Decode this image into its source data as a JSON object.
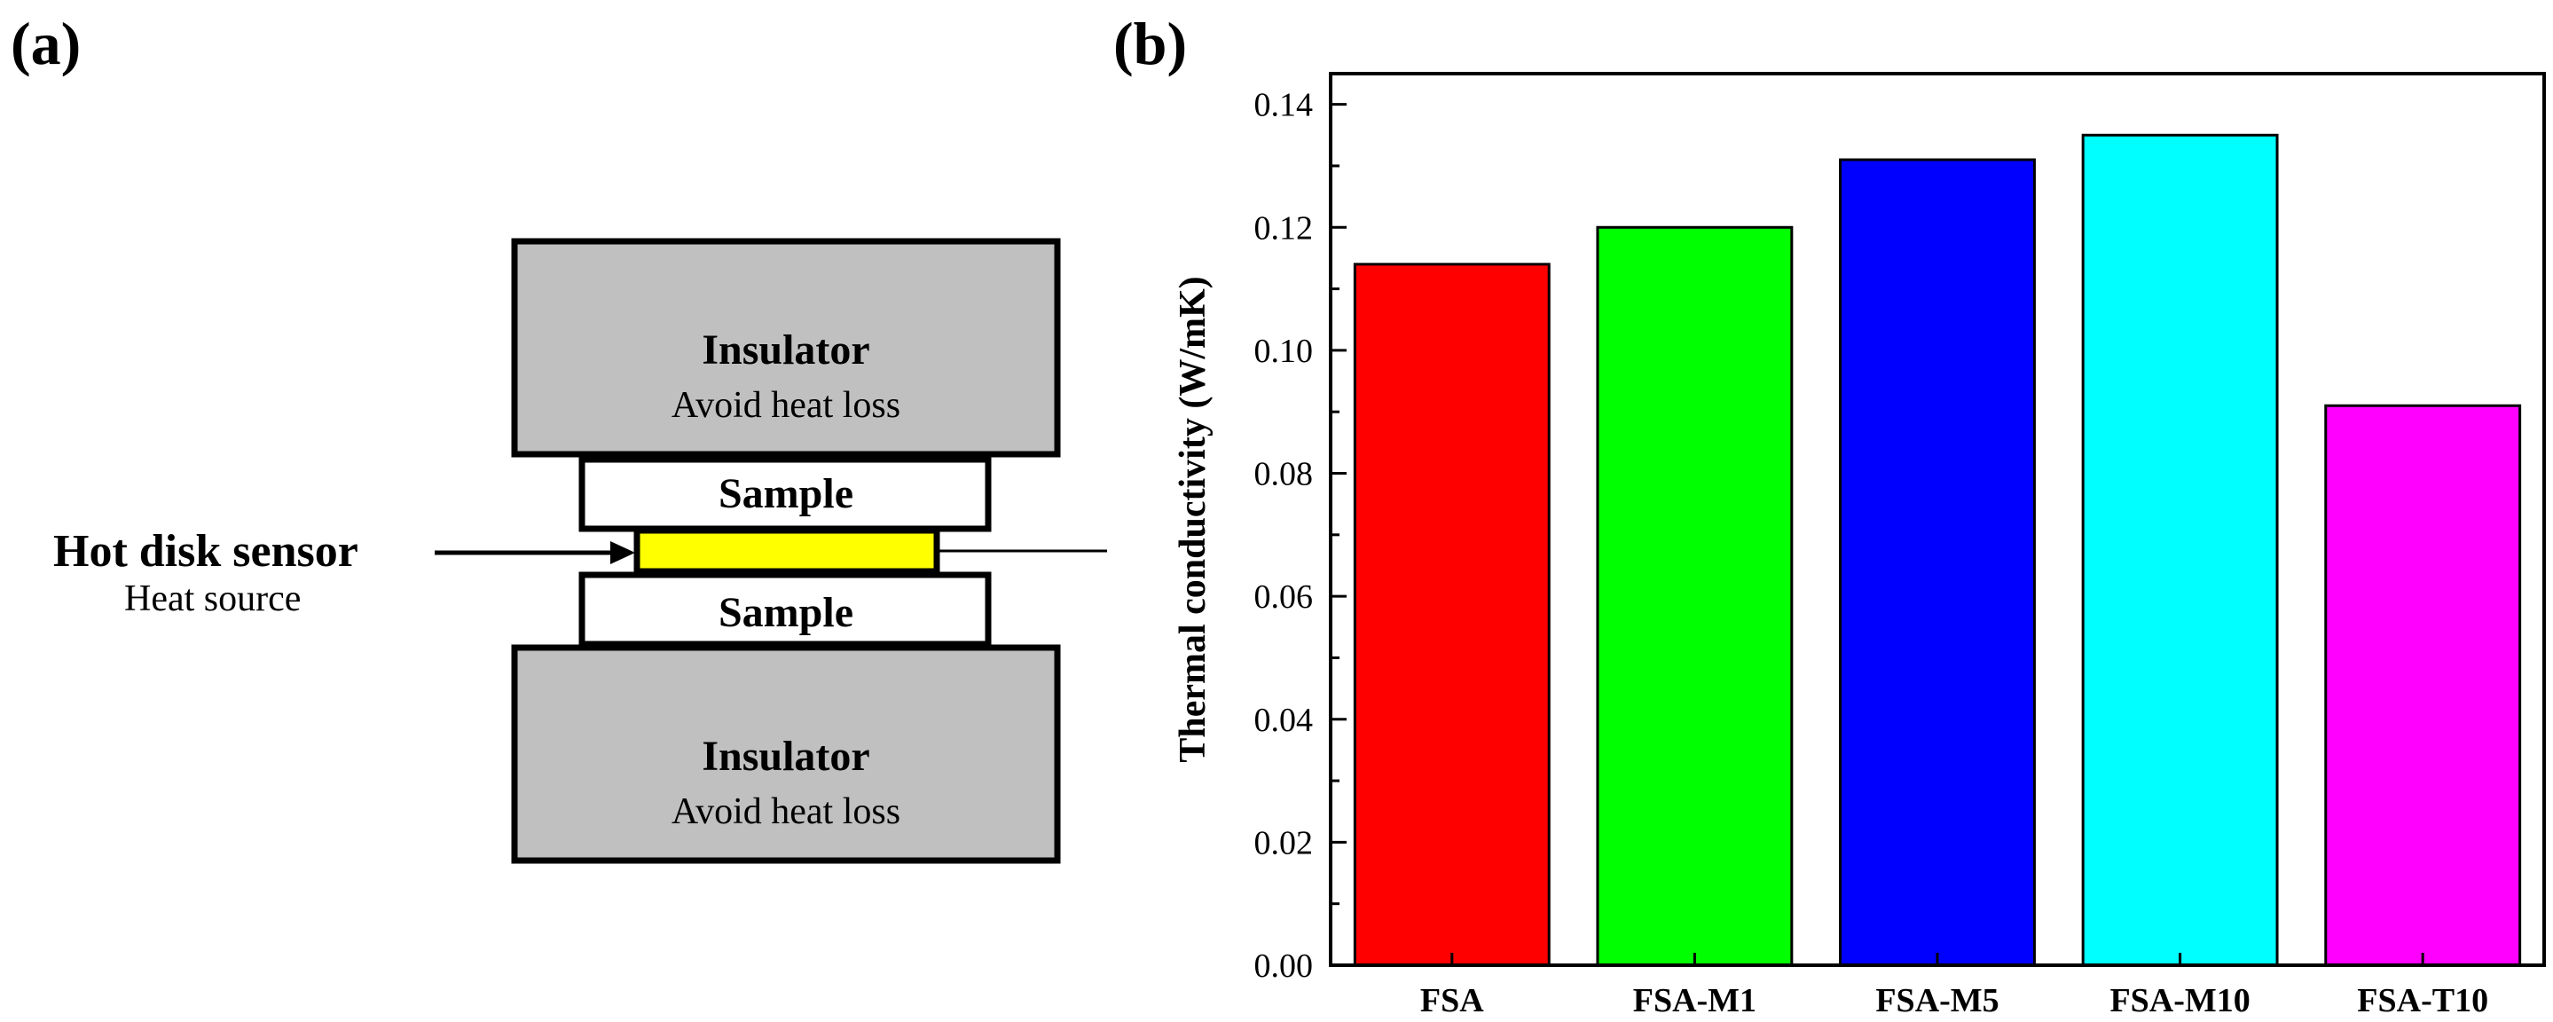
{
  "panel_a": {
    "label": "(a)",
    "top_insulator": {
      "title": "Insulator",
      "subtitle": "Avoid heat loss"
    },
    "top_sample": {
      "title": "Sample"
    },
    "sensor": {
      "title": "Hot disk sensor",
      "subtitle": "Heat source"
    },
    "bottom_sample": {
      "title": "Sample"
    },
    "bottom_insulator": {
      "title": "Insulator",
      "subtitle": "Avoid heat loss"
    },
    "colors": {
      "insulator": "#c0c0c0",
      "sample": "#ffffff",
      "sensor": "#ffff00"
    }
  },
  "panel_b": {
    "label": "(b)"
  },
  "chart_data": {
    "type": "bar",
    "title": "",
    "xlabel": "",
    "ylabel": "Thermal conductivity (W/mK)",
    "categories": [
      "FSA",
      "FSA-M1",
      "FSA-M5",
      "FSA-M10",
      "FSA-T10"
    ],
    "values": [
      0.114,
      0.12,
      0.131,
      0.135,
      0.091
    ],
    "colors": [
      "#ff0000",
      "#00ff00",
      "#0000ff",
      "#00ffff",
      "#ff00ff"
    ],
    "ylim": [
      0,
      0.145
    ],
    "yticks": [
      "0.00",
      "0.02",
      "0.04",
      "0.06",
      "0.08",
      "0.10",
      "0.12",
      "0.14"
    ],
    "grid": false,
    "legend": "none"
  }
}
